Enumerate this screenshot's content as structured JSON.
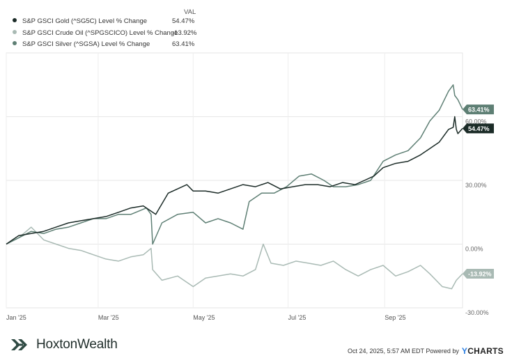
{
  "legend": {
    "header": "VAL",
    "items": [
      {
        "name": "S&P GSCI Gold (^SG5C) Level % Change",
        "value": "54.47%",
        "color": "#1b2b27"
      },
      {
        "name": "S&P GSCI Crude Oil (^SPGSCICO) Level % Change",
        "value": "-13.92%",
        "color": "#a9bab4"
      },
      {
        "name": "S&P GSCI Silver (^SGSA) Level % Change",
        "value": "63.41%",
        "color": "#5e7f74"
      }
    ]
  },
  "footer": {
    "brand": "HoxtonWealth",
    "timestamp": "Oct 24, 2025, 5:57 AM EDT Powered by",
    "powered_logo_y": "Y",
    "powered_logo_rest": "CHARTS"
  },
  "chart_data": {
    "type": "line",
    "title": "",
    "xlabel": "",
    "ylabel": "",
    "ylim": [
      -30,
      90
    ],
    "xlim": [
      0,
      293
    ],
    "y_ticks": [
      {
        "value": 60,
        "label": "60.00%"
      },
      {
        "value": 30,
        "label": "30.00%"
      },
      {
        "value": 0,
        "label": "0.00%"
      },
      {
        "value": -30,
        "label": "-30.00%"
      }
    ],
    "x_ticks": [
      {
        "day": 0,
        "label": "Jan '25"
      },
      {
        "day": 59,
        "label": "Mar '25"
      },
      {
        "day": 120,
        "label": "May '25"
      },
      {
        "day": 181,
        "label": "Jul '25"
      },
      {
        "day": 243,
        "label": "Sep '25"
      }
    ],
    "series": [
      {
        "name": "S&P GSCI Crude Oil (^SPGSCICO) Level % Change",
        "color": "#a9bab4",
        "end_label": "-13.92%",
        "points": [
          [
            0,
            0
          ],
          [
            8,
            3
          ],
          [
            16,
            8
          ],
          [
            24,
            2
          ],
          [
            32,
            0
          ],
          [
            40,
            -2
          ],
          [
            48,
            -3
          ],
          [
            56,
            -5
          ],
          [
            64,
            -7
          ],
          [
            72,
            -8
          ],
          [
            80,
            -6
          ],
          [
            88,
            -5
          ],
          [
            93,
            -2
          ],
          [
            94,
            -12
          ],
          [
            100,
            -17
          ],
          [
            110,
            -15
          ],
          [
            120,
            -20
          ],
          [
            128,
            -16
          ],
          [
            136,
            -15
          ],
          [
            144,
            -14
          ],
          [
            152,
            -15
          ],
          [
            160,
            -12
          ],
          [
            165,
            0
          ],
          [
            170,
            -9
          ],
          [
            178,
            -10
          ],
          [
            186,
            -8
          ],
          [
            194,
            -9
          ],
          [
            202,
            -10
          ],
          [
            210,
            -8
          ],
          [
            218,
            -12
          ],
          [
            226,
            -15
          ],
          [
            234,
            -12
          ],
          [
            242,
            -10
          ],
          [
            250,
            -15
          ],
          [
            258,
            -13
          ],
          [
            266,
            -10
          ],
          [
            272,
            -14
          ],
          [
            280,
            -20
          ],
          [
            286,
            -21
          ],
          [
            289,
            -17
          ],
          [
            293,
            -13.92
          ]
        ]
      },
      {
        "name": "S&P GSCI Silver (^SGSA) Level % Change",
        "color": "#5e7f74",
        "end_label": "63.41%",
        "points": [
          [
            0,
            0
          ],
          [
            8,
            3
          ],
          [
            16,
            6
          ],
          [
            24,
            5
          ],
          [
            32,
            7
          ],
          [
            40,
            8
          ],
          [
            48,
            10
          ],
          [
            56,
            12
          ],
          [
            64,
            12
          ],
          [
            72,
            14
          ],
          [
            80,
            14
          ],
          [
            90,
            17
          ],
          [
            93,
            14
          ],
          [
            94,
            0
          ],
          [
            100,
            10
          ],
          [
            110,
            14
          ],
          [
            120,
            15
          ],
          [
            128,
            10
          ],
          [
            136,
            12
          ],
          [
            144,
            10
          ],
          [
            152,
            7
          ],
          [
            156,
            20
          ],
          [
            164,
            24
          ],
          [
            172,
            24
          ],
          [
            180,
            27
          ],
          [
            188,
            32
          ],
          [
            196,
            33
          ],
          [
            204,
            30
          ],
          [
            210,
            27
          ],
          [
            218,
            27
          ],
          [
            226,
            28
          ],
          [
            234,
            30
          ],
          [
            242,
            39
          ],
          [
            250,
            42
          ],
          [
            258,
            44
          ],
          [
            266,
            50
          ],
          [
            272,
            58
          ],
          [
            278,
            63
          ],
          [
            284,
            72
          ],
          [
            287,
            75
          ],
          [
            288,
            70
          ],
          [
            290,
            68
          ],
          [
            293,
            63.41
          ]
        ]
      },
      {
        "name": "S&P GSCI Gold (^SG5C) Level % Change",
        "color": "#1b2b27",
        "end_label": "54.47%",
        "points": [
          [
            0,
            0
          ],
          [
            8,
            4
          ],
          [
            16,
            5
          ],
          [
            24,
            6
          ],
          [
            32,
            8
          ],
          [
            40,
            10
          ],
          [
            48,
            11
          ],
          [
            56,
            12
          ],
          [
            64,
            13
          ],
          [
            72,
            15
          ],
          [
            80,
            17
          ],
          [
            88,
            18
          ],
          [
            96,
            14
          ],
          [
            104,
            24
          ],
          [
            110,
            26
          ],
          [
            116,
            28
          ],
          [
            120,
            25
          ],
          [
            128,
            25
          ],
          [
            136,
            24
          ],
          [
            144,
            26
          ],
          [
            152,
            28
          ],
          [
            160,
            27
          ],
          [
            168,
            29
          ],
          [
            176,
            26
          ],
          [
            184,
            27
          ],
          [
            192,
            28
          ],
          [
            200,
            28
          ],
          [
            208,
            27
          ],
          [
            216,
            29
          ],
          [
            224,
            28
          ],
          [
            230,
            30
          ],
          [
            236,
            32
          ],
          [
            242,
            36
          ],
          [
            250,
            38
          ],
          [
            258,
            39
          ],
          [
            266,
            42
          ],
          [
            272,
            45
          ],
          [
            278,
            48
          ],
          [
            284,
            54
          ],
          [
            287,
            55
          ],
          [
            288,
            60
          ],
          [
            289,
            54
          ],
          [
            290,
            52
          ],
          [
            293,
            54.47
          ]
        ]
      }
    ]
  }
}
